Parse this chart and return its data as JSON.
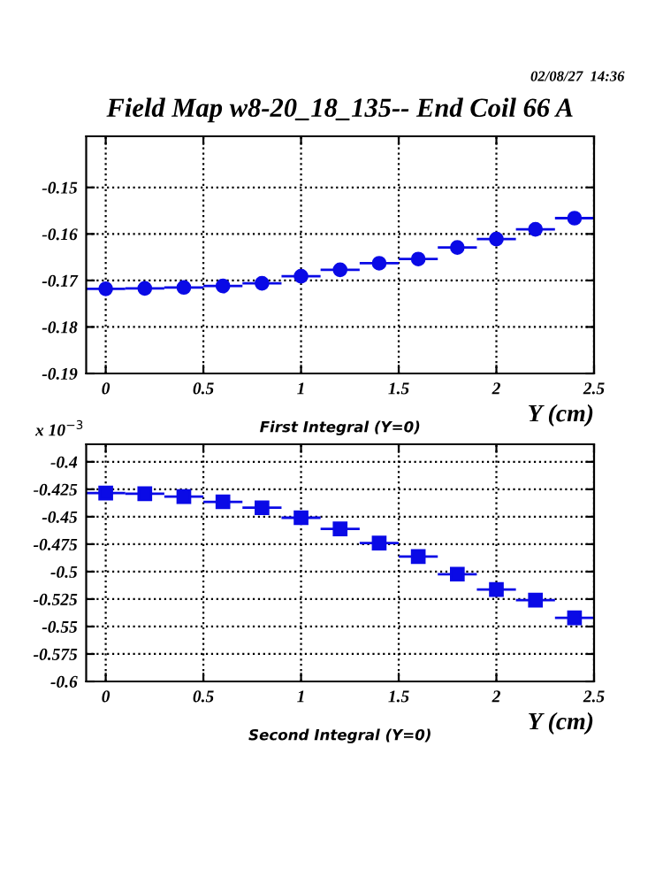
{
  "chart_data": [
    {
      "type": "scatter",
      "title": "Field Map w8-20_18_135-- End Coil 66 A",
      "xlabel": "Y (cm)",
      "annotations": [
        "02/08/27  14:36",
        "First Integral (Y=0)"
      ],
      "x": [
        0,
        0.2,
        0.4,
        0.6,
        0.8,
        1.0,
        1.2,
        1.4,
        1.6,
        1.8,
        2.0,
        2.2,
        2.4
      ],
      "series": [
        {
          "color": "#0a0ae6",
          "values": [
            -0.1718,
            -0.1717,
            -0.1715,
            -0.1712,
            -0.1706,
            -0.1691,
            -0.1677,
            -0.1663,
            -0.1654,
            -0.1629,
            -0.1611,
            -0.159,
            -0.1566
          ],
          "xerrors": [
            0.1,
            0.1,
            0.1,
            0.1,
            0.1,
            0.1,
            0.1,
            0.1,
            0.1,
            0.1,
            0.1,
            0.1,
            0.1
          ]
        }
      ],
      "xlim": [
        -0.1,
        2.5
      ],
      "xticks": [
        0,
        0.5,
        1,
        1.5,
        2,
        2.5
      ],
      "ylim": [
        -0.19,
        -0.139
      ],
      "yticks": [
        -0.19,
        -0.18,
        -0.17,
        -0.16,
        -0.15
      ],
      "grid": true,
      "marker": "circle"
    },
    {
      "type": "scatter",
      "xlabel": "Y (cm)",
      "annotations": [
        "x 10$^{−3}$",
        "Second Integral (Y=0)"
      ],
      "x": [
        0,
        0.2,
        0.4,
        0.6,
        0.8,
        1.0,
        1.2,
        1.4,
        1.6,
        1.8,
        2.0,
        2.2,
        2.4
      ],
      "series": [
        {
          "color": "#0a0ae6",
          "values": [
            -0.4284,
            -0.429,
            -0.4316,
            -0.4364,
            -0.4418,
            -0.4509,
            -0.4611,
            -0.474,
            -0.4862,
            -0.5023,
            -0.5163,
            -0.526,
            -0.5421
          ],
          "xerrors": [
            0.1,
            0.1,
            0.1,
            0.1,
            0.1,
            0.1,
            0.1,
            0.1,
            0.1,
            0.1,
            0.1,
            0.1,
            0.1
          ]
        }
      ],
      "xlim": [
        -0.1,
        2.5
      ],
      "xticks": [
        0,
        0.5,
        1,
        1.5,
        2,
        2.5
      ],
      "ylim": [
        -0.6,
        -0.384
      ],
      "yticks": [
        -0.6,
        -0.575,
        -0.55,
        -0.525,
        -0.5,
        -0.475,
        -0.45,
        -0.425,
        -0.4
      ],
      "grid": true,
      "marker": "square"
    }
  ]
}
